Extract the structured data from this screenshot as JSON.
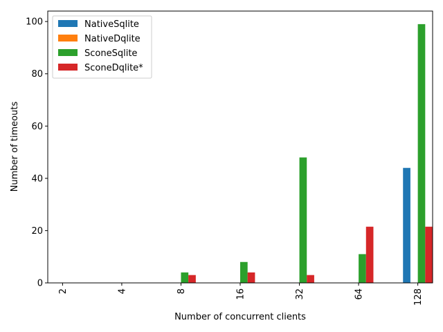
{
  "chart_data": {
    "type": "bar",
    "categories": [
      "2",
      "4",
      "8",
      "16",
      "32",
      "64",
      "128"
    ],
    "series": [
      {
        "name": "NativeSqlite",
        "color": "#1f77b4",
        "values": [
          0,
          0,
          0,
          0,
          0,
          0,
          44
        ]
      },
      {
        "name": "NativeDqlite",
        "color": "#ff7f0e",
        "values": [
          0,
          0,
          0,
          0,
          0,
          0,
          0
        ]
      },
      {
        "name": "SconeSqlite",
        "color": "#2ca02c",
        "values": [
          0,
          0,
          4,
          8,
          48,
          11,
          99
        ]
      },
      {
        "name": "SconeDqlite*",
        "color": "#d62728",
        "values": [
          0,
          0,
          3,
          4,
          3,
          21.5,
          21.5
        ]
      }
    ],
    "xlabel": "Number of concurrent clients",
    "ylabel": "Number of timeouts",
    "ylim": [
      0,
      104
    ],
    "yticks": [
      0,
      20,
      40,
      60,
      80,
      100
    ],
    "grid": false,
    "legend_position": "top-left",
    "x_tick_rotation": "vertical"
  }
}
